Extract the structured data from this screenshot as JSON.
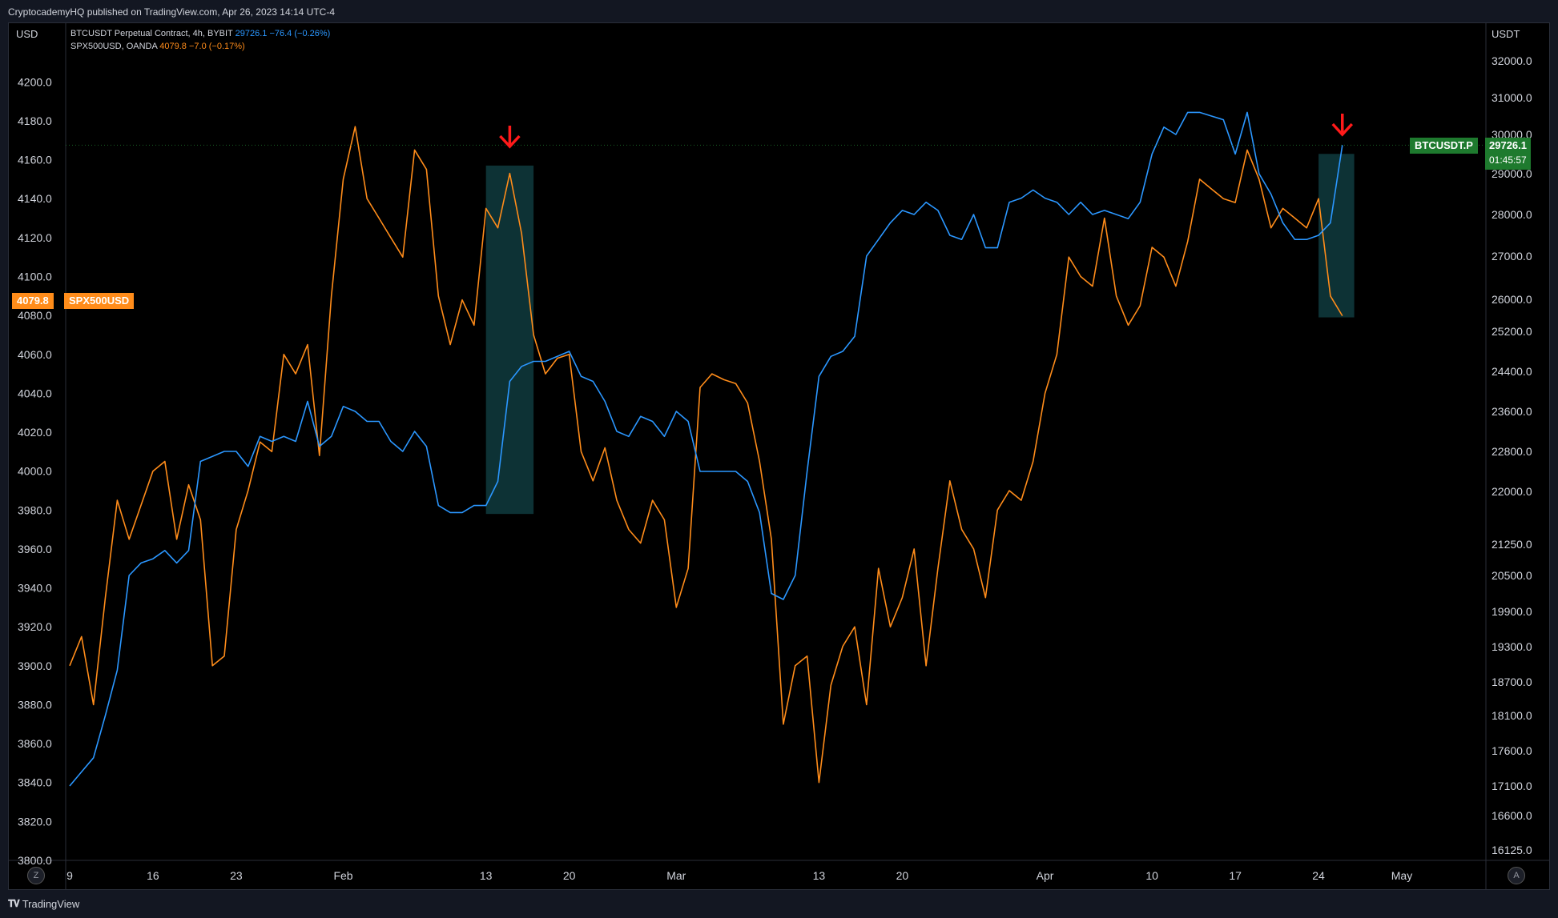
{
  "header": {
    "published_text": "CryptocademyHQ published on TradingView.com, Apr 26, 2023 14:14 UTC-4"
  },
  "footer": {
    "brand": "TradingView",
    "logo_icon": "tradingview-logo-icon"
  },
  "legend": {
    "btc": {
      "name": "BTCUSDT Perpetual Contract, 4h, BYBIT",
      "value": "29726.1",
      "change": "−76.4 (−0.26%)"
    },
    "spx": {
      "name": "SPX500USD, OANDA",
      "value": "4079.8",
      "change": "−7.0 (−0.17%)"
    }
  },
  "axes": {
    "left_unit": "USD",
    "right_unit": "USDT",
    "z_button": "Z",
    "a_button": "A"
  },
  "price_tags": {
    "spx_value": "4079.8",
    "spx_label": "SPX500USD",
    "btc_label": "BTCUSDT.P",
    "btc_value": "29726.1",
    "btc_countdown": "01:45:57"
  },
  "colors": {
    "btc": "#2b97ff",
    "spx": "#ff8c1a",
    "highlight": "#0f3b3e",
    "arrow": "#ff1a1a",
    "btc_tag": "#1e7a2e",
    "spx_tag": "#ff8c1a"
  },
  "chart_data": {
    "type": "line",
    "x_tick_labels": [
      "9",
      "16",
      "23",
      "Feb",
      "13",
      "20",
      "Mar",
      "13",
      "20",
      "Apr",
      "10",
      "17",
      "24",
      "May"
    ],
    "x_tick_dates": [
      "2023-01-09",
      "2023-01-16",
      "2023-01-23",
      "2023-02-01",
      "2023-02-13",
      "2023-02-20",
      "2023-03-01",
      "2023-03-13",
      "2023-03-20",
      "2023-04-01",
      "2023-04-10",
      "2023-04-17",
      "2023-04-24",
      "2023-05-01"
    ],
    "y_left_ticks": [
      3800,
      3820,
      3840,
      3860,
      3880,
      3900,
      3920,
      3940,
      3960,
      3980,
      4000,
      4020,
      4040,
      4060,
      4080,
      4100,
      4120,
      4140,
      4160,
      4180,
      4200
    ],
    "y_left_range": [
      3800,
      4210
    ],
    "y_right_ticks": [
      16125,
      16600,
      17100,
      17600,
      18100,
      18700,
      19300,
      19900,
      20500,
      21250,
      22000,
      22800,
      23600,
      24400,
      25200,
      26000,
      27000,
      28000,
      29000,
      30000,
      31000,
      32000
    ],
    "y_right_range": [
      16080,
      32600
    ],
    "series": [
      {
        "name": "SPX500USD, OANDA",
        "axis": "left",
        "points": [
          [
            "2023-01-09",
            3900
          ],
          [
            "2023-01-10",
            3915
          ],
          [
            "2023-01-11",
            3880
          ],
          [
            "2023-01-12",
            3935
          ],
          [
            "2023-01-13",
            3985
          ],
          [
            "2023-01-14",
            3965
          ],
          [
            "2023-01-16",
            4000
          ],
          [
            "2023-01-17",
            4005
          ],
          [
            "2023-01-18",
            3965
          ],
          [
            "2023-01-19",
            3993
          ],
          [
            "2023-01-20",
            3975
          ],
          [
            "2023-01-21",
            3900
          ],
          [
            "2023-01-22",
            3905
          ],
          [
            "2023-01-23",
            3970
          ],
          [
            "2023-01-24",
            3990
          ],
          [
            "2023-01-25",
            4015
          ],
          [
            "2023-01-26",
            4010
          ],
          [
            "2023-01-27",
            4060
          ],
          [
            "2023-01-28",
            4050
          ],
          [
            "2023-01-29",
            4065
          ],
          [
            "2023-01-30",
            4008
          ],
          [
            "2023-01-31",
            4090
          ],
          [
            "2023-02-01",
            4150
          ],
          [
            "2023-02-02",
            4177
          ],
          [
            "2023-02-03",
            4140
          ],
          [
            "2023-02-04",
            4130
          ],
          [
            "2023-02-05",
            4120
          ],
          [
            "2023-02-06",
            4110
          ],
          [
            "2023-02-07",
            4165
          ],
          [
            "2023-02-08",
            4155
          ],
          [
            "2023-02-09",
            4090
          ],
          [
            "2023-02-10",
            4065
          ],
          [
            "2023-02-11",
            4088
          ],
          [
            "2023-02-12",
            4075
          ],
          [
            "2023-02-13",
            4135
          ],
          [
            "2023-02-14",
            4125
          ],
          [
            "2023-02-15",
            4153
          ],
          [
            "2023-02-16",
            4122
          ],
          [
            "2023-02-17",
            4070
          ],
          [
            "2023-02-18",
            4050
          ],
          [
            "2023-02-19",
            4058
          ],
          [
            "2023-02-20",
            4060
          ],
          [
            "2023-02-21",
            4010
          ],
          [
            "2023-02-22",
            3995
          ],
          [
            "2023-02-23",
            4012
          ],
          [
            "2023-02-24",
            3985
          ],
          [
            "2023-02-25",
            3970
          ],
          [
            "2023-02-26",
            3963
          ],
          [
            "2023-02-27",
            3985
          ],
          [
            "2023-02-28",
            3975
          ],
          [
            "2023-03-01",
            3930
          ],
          [
            "2023-03-02",
            3950
          ],
          [
            "2023-03-03",
            4043
          ],
          [
            "2023-03-04",
            4050
          ],
          [
            "2023-03-05",
            4047
          ],
          [
            "2023-03-06",
            4045
          ],
          [
            "2023-03-07",
            4035
          ],
          [
            "2023-03-08",
            4005
          ],
          [
            "2023-03-09",
            3965
          ],
          [
            "2023-03-10",
            3870
          ],
          [
            "2023-03-11",
            3900
          ],
          [
            "2023-03-12",
            3905
          ],
          [
            "2023-03-13",
            3840
          ],
          [
            "2023-03-14",
            3890
          ],
          [
            "2023-03-15",
            3910
          ],
          [
            "2023-03-16",
            3920
          ],
          [
            "2023-03-17",
            3880
          ],
          [
            "2023-03-18",
            3950
          ],
          [
            "2023-03-19",
            3920
          ],
          [
            "2023-03-20",
            3935
          ],
          [
            "2023-03-21",
            3960
          ],
          [
            "2023-03-22",
            3900
          ],
          [
            "2023-03-23",
            3950
          ],
          [
            "2023-03-24",
            3995
          ],
          [
            "2023-03-25",
            3970
          ],
          [
            "2023-03-26",
            3960
          ],
          [
            "2023-03-27",
            3935
          ],
          [
            "2023-03-28",
            3980
          ],
          [
            "2023-03-29",
            3990
          ],
          [
            "2023-03-30",
            3985
          ],
          [
            "2023-03-31",
            4005
          ],
          [
            "2023-04-01",
            4040
          ],
          [
            "2023-04-02",
            4060
          ],
          [
            "2023-04-03",
            4110
          ],
          [
            "2023-04-04",
            4100
          ],
          [
            "2023-04-05",
            4095
          ],
          [
            "2023-04-06",
            4130
          ],
          [
            "2023-04-07",
            4090
          ],
          [
            "2023-04-08",
            4075
          ],
          [
            "2023-04-09",
            4085
          ],
          [
            "2023-04-10",
            4115
          ],
          [
            "2023-04-11",
            4110
          ],
          [
            "2023-04-12",
            4095
          ],
          [
            "2023-04-13",
            4118
          ],
          [
            "2023-04-14",
            4150
          ],
          [
            "2023-04-15",
            4145
          ],
          [
            "2023-04-16",
            4140
          ],
          [
            "2023-04-17",
            4138
          ],
          [
            "2023-04-18",
            4165
          ],
          [
            "2023-04-19",
            4150
          ],
          [
            "2023-04-20",
            4125
          ],
          [
            "2023-04-21",
            4135
          ],
          [
            "2023-04-22",
            4130
          ],
          [
            "2023-04-23",
            4125
          ],
          [
            "2023-04-24",
            4140
          ],
          [
            "2023-04-25",
            4090
          ],
          [
            "2023-04-26",
            4079.8
          ]
        ]
      },
      {
        "name": "BTCUSDT Perpetual Contract, 4h, BYBIT",
        "axis": "right",
        "points": [
          [
            "2023-01-09",
            17100
          ],
          [
            "2023-01-10",
            17300
          ],
          [
            "2023-01-11",
            17500
          ],
          [
            "2023-01-12",
            18100
          ],
          [
            "2023-01-13",
            18900
          ],
          [
            "2023-01-14",
            20500
          ],
          [
            "2023-01-15",
            20800
          ],
          [
            "2023-01-16",
            20900
          ],
          [
            "2023-01-17",
            21100
          ],
          [
            "2023-01-18",
            20800
          ],
          [
            "2023-01-19",
            21100
          ],
          [
            "2023-01-20",
            22600
          ],
          [
            "2023-01-21",
            22700
          ],
          [
            "2023-01-22",
            22800
          ],
          [
            "2023-01-23",
            22800
          ],
          [
            "2023-01-24",
            22500
          ],
          [
            "2023-01-25",
            23100
          ],
          [
            "2023-01-26",
            23000
          ],
          [
            "2023-01-27",
            23100
          ],
          [
            "2023-01-28",
            23000
          ],
          [
            "2023-01-29",
            23800
          ],
          [
            "2023-01-30",
            22900
          ],
          [
            "2023-01-31",
            23100
          ],
          [
            "2023-02-01",
            23700
          ],
          [
            "2023-02-02",
            23600
          ],
          [
            "2023-02-03",
            23400
          ],
          [
            "2023-02-04",
            23400
          ],
          [
            "2023-02-05",
            23000
          ],
          [
            "2023-02-06",
            22800
          ],
          [
            "2023-02-07",
            23200
          ],
          [
            "2023-02-08",
            22900
          ],
          [
            "2023-02-09",
            21800
          ],
          [
            "2023-02-10",
            21700
          ],
          [
            "2023-02-11",
            21700
          ],
          [
            "2023-02-12",
            21800
          ],
          [
            "2023-02-13",
            21800
          ],
          [
            "2023-02-14",
            22200
          ],
          [
            "2023-02-15",
            24200
          ],
          [
            "2023-02-16",
            24500
          ],
          [
            "2023-02-17",
            24600
          ],
          [
            "2023-02-18",
            24600
          ],
          [
            "2023-02-19",
            24700
          ],
          [
            "2023-02-20",
            24800
          ],
          [
            "2023-02-21",
            24300
          ],
          [
            "2023-02-22",
            24200
          ],
          [
            "2023-02-23",
            23800
          ],
          [
            "2023-02-24",
            23200
          ],
          [
            "2023-02-25",
            23100
          ],
          [
            "2023-02-26",
            23500
          ],
          [
            "2023-02-27",
            23400
          ],
          [
            "2023-02-28",
            23100
          ],
          [
            "2023-03-01",
            23600
          ],
          [
            "2023-03-02",
            23400
          ],
          [
            "2023-03-03",
            22400
          ],
          [
            "2023-03-04",
            22400
          ],
          [
            "2023-03-05",
            22400
          ],
          [
            "2023-03-06",
            22400
          ],
          [
            "2023-03-07",
            22200
          ],
          [
            "2023-03-08",
            21700
          ],
          [
            "2023-03-09",
            20200
          ],
          [
            "2023-03-10",
            20100
          ],
          [
            "2023-03-11",
            20500
          ],
          [
            "2023-03-12",
            22400
          ],
          [
            "2023-03-13",
            24300
          ],
          [
            "2023-03-14",
            24700
          ],
          [
            "2023-03-15",
            24800
          ],
          [
            "2023-03-16",
            25100
          ],
          [
            "2023-03-17",
            27000
          ],
          [
            "2023-03-18",
            27400
          ],
          [
            "2023-03-19",
            27800
          ],
          [
            "2023-03-20",
            28100
          ],
          [
            "2023-03-21",
            28000
          ],
          [
            "2023-03-22",
            28300
          ],
          [
            "2023-03-23",
            28100
          ],
          [
            "2023-03-24",
            27500
          ],
          [
            "2023-03-25",
            27400
          ],
          [
            "2023-03-26",
            28000
          ],
          [
            "2023-03-27",
            27200
          ],
          [
            "2023-03-28",
            27200
          ],
          [
            "2023-03-29",
            28300
          ],
          [
            "2023-03-30",
            28400
          ],
          [
            "2023-03-31",
            28600
          ],
          [
            "2023-04-01",
            28400
          ],
          [
            "2023-04-02",
            28300
          ],
          [
            "2023-04-03",
            28000
          ],
          [
            "2023-04-04",
            28300
          ],
          [
            "2023-04-05",
            28000
          ],
          [
            "2023-04-06",
            28100
          ],
          [
            "2023-04-07",
            28000
          ],
          [
            "2023-04-08",
            27900
          ],
          [
            "2023-04-09",
            28300
          ],
          [
            "2023-04-10",
            29500
          ],
          [
            "2023-04-11",
            30200
          ],
          [
            "2023-04-12",
            30000
          ],
          [
            "2023-04-13",
            30600
          ],
          [
            "2023-04-14",
            30600
          ],
          [
            "2023-04-15",
            30500
          ],
          [
            "2023-04-16",
            30400
          ],
          [
            "2023-04-17",
            29500
          ],
          [
            "2023-04-18",
            30600
          ],
          [
            "2023-04-19",
            29000
          ],
          [
            "2023-04-20",
            28500
          ],
          [
            "2023-04-21",
            27800
          ],
          [
            "2023-04-22",
            27400
          ],
          [
            "2023-04-23",
            27400
          ],
          [
            "2023-04-24",
            27500
          ],
          [
            "2023-04-25",
            27800
          ],
          [
            "2023-04-26",
            29726.1
          ]
        ]
      }
    ],
    "annotations": [
      {
        "type": "shaded-box",
        "x_from": "2023-02-13",
        "x_to": "2023-02-17",
        "left_from": 3978,
        "left_to": 4157
      },
      {
        "type": "shaded-box",
        "x_from": "2023-04-24",
        "x_to": "2023-04-27",
        "left_from": 4079,
        "left_to": 4163
      },
      {
        "type": "down-arrow",
        "x": "2023-02-15"
      },
      {
        "type": "down-arrow",
        "x": "2023-04-26"
      }
    ],
    "grid": false
  }
}
